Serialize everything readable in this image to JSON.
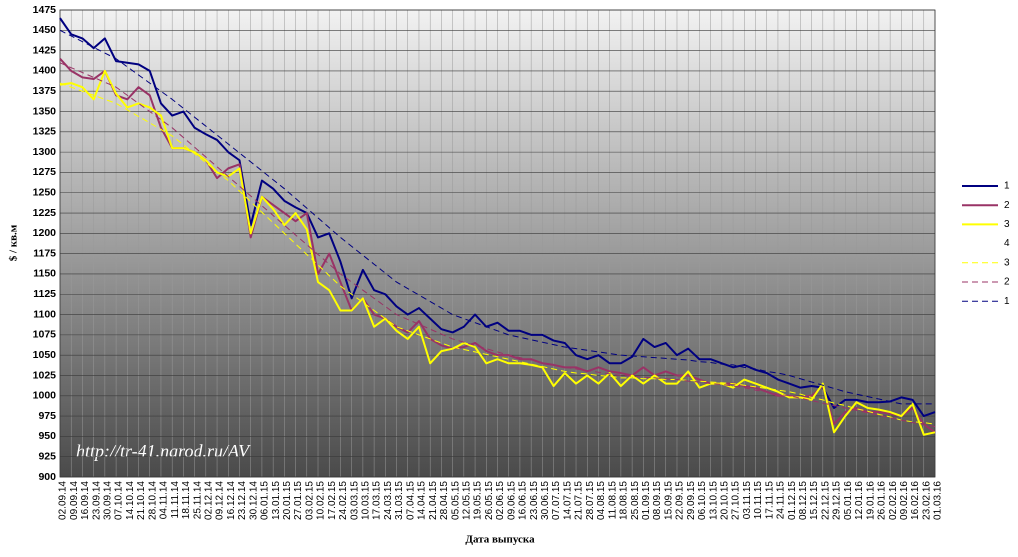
{
  "chart_data": {
    "type": "line",
    "x_label": "Дата выпуска",
    "y_label": "$ / кв.м",
    "annotation": "http://tr-41.narod.ru/AV",
    "categories": [
      "02.09.14",
      "09.09.14",
      "16.09.14",
      "23.09.14",
      "30.09.14",
      "07.10.14",
      "14.10.14",
      "21.10.14",
      "28.10.14",
      "04.11.14",
      "11.11.14",
      "18.11.14",
      "25.11.14",
      "02.12.14",
      "09.12.14",
      "16.12.14",
      "23.12.14",
      "30.12.14",
      "06.01.15",
      "13.01.15",
      "20.01.15",
      "27.01.15",
      "03.02.15",
      "10.02.15",
      "17.02.15",
      "24.02.15",
      "03.03.15",
      "10.03.15",
      "17.03.15",
      "24.03.15",
      "31.03.15",
      "07.04.15",
      "14.04.15",
      "21.04.15",
      "28.04.15",
      "05.05.15",
      "12.05.15",
      "19.05.15",
      "26.05.15",
      "02.06.15",
      "09.06.15",
      "16.06.15",
      "23.06.15",
      "30.06.15",
      "07.07.15",
      "14.07.15",
      "21.07.15",
      "28.07.15",
      "04.08.15",
      "11.08.15",
      "18.08.15",
      "25.08.15",
      "01.09.15",
      "08.09.15",
      "15.09.15",
      "22.09.15",
      "29.09.15",
      "06.10.15",
      "13.10.15",
      "20.10.15",
      "27.10.15",
      "03.11.15",
      "10.11.15",
      "17.11.15",
      "24.11.15",
      "01.12.15",
      "08.12.15",
      "15.12.15",
      "22.12.15",
      "29.12.15",
      "05.01.16",
      "12.01.16",
      "19.01.16",
      "26.01.16",
      "02.02.16",
      "09.02.16",
      "16.02.16",
      "23.02.16",
      "01.03.16"
    ],
    "ylim": [
      900,
      1475
    ],
    "yticks": [
      900,
      925,
      950,
      975,
      1000,
      1025,
      1050,
      1075,
      1100,
      1125,
      1150,
      1175,
      1200,
      1225,
      1250,
      1275,
      1300,
      1325,
      1350,
      1375,
      1400,
      1425,
      1450,
      1475
    ],
    "grid": true,
    "legend": "right",
    "series": [
      {
        "name": "1",
        "color": "#000080",
        "dashed": false,
        "values": [
          1465,
          1445,
          1440,
          1428,
          1440,
          1412,
          1410,
          1408,
          1400,
          1360,
          1345,
          1350,
          1330,
          1322,
          1315,
          1300,
          1290,
          1210,
          1265,
          1255,
          1240,
          1232,
          1225,
          1195,
          1200,
          1165,
          1120,
          1155,
          1130,
          1125,
          1110,
          1100,
          1108,
          1095,
          1082,
          1078,
          1085,
          1100,
          1085,
          1090,
          1080,
          1080,
          1075,
          1075,
          1068,
          1065,
          1050,
          1045,
          1050,
          1040,
          1040,
          1048,
          1070,
          1060,
          1065,
          1050,
          1058,
          1045,
          1045,
          1040,
          1035,
          1038,
          1032,
          1028,
          1020,
          1015,
          1010,
          1012,
          1010,
          985,
          995,
          995,
          992,
          992,
          993,
          998,
          995,
          975,
          980
        ]
      },
      {
        "name": "2",
        "color": "#993366",
        "dashed": false,
        "values": [
          1415,
          1400,
          1392,
          1390,
          1400,
          1370,
          1365,
          1380,
          1370,
          1330,
          1305,
          1305,
          1300,
          1290,
          1268,
          1280,
          1285,
          1195,
          1245,
          1235,
          1225,
          1215,
          1225,
          1150,
          1175,
          1140,
          1105,
          1120,
          1100,
          1095,
          1085,
          1078,
          1092,
          1070,
          1062,
          1058,
          1060,
          1065,
          1055,
          1050,
          1050,
          1045,
          1045,
          1040,
          1038,
          1035,
          1035,
          1030,
          1035,
          1030,
          1028,
          1025,
          1035,
          1025,
          1030,
          1025,
          1025,
          1020,
          1015,
          1015,
          1015,
          1012,
          1010,
          1005,
          1000,
          1000,
          998,
          1000,
          1012,
          965,
          980,
          985,
          980,
          980,
          978,
          975,
          985,
          965,
          955
        ]
      },
      {
        "name": "3",
        "color": "#ffff00",
        "dashed": false,
        "values": [
          1383,
          1385,
          1380,
          1365,
          1400,
          1372,
          1355,
          1360,
          1355,
          1345,
          1305,
          1305,
          1300,
          1290,
          1275,
          1270,
          1280,
          1200,
          1245,
          1230,
          1210,
          1225,
          1205,
          1140,
          1130,
          1105,
          1105,
          1120,
          1085,
          1095,
          1080,
          1070,
          1085,
          1040,
          1055,
          1058,
          1065,
          1060,
          1040,
          1045,
          1040,
          1040,
          1038,
          1035,
          1012,
          1028,
          1015,
          1025,
          1015,
          1028,
          1012,
          1025,
          1015,
          1025,
          1015,
          1015,
          1030,
          1010,
          1015,
          1015,
          1010,
          1020,
          1015,
          1010,
          1005,
          998,
          998,
          995,
          1015,
          955,
          975,
          992,
          985,
          983,
          980,
          975,
          990,
          952,
          955
        ]
      },
      {
        "name": "4",
        "color": "#ffffff",
        "dashed": false,
        "values": [
          null,
          null,
          null,
          null,
          null,
          null,
          null,
          null,
          null,
          null,
          null,
          null,
          null,
          null,
          null,
          null,
          null,
          null,
          null,
          null,
          null,
          null,
          null,
          null,
          null,
          null,
          null,
          null,
          null,
          null,
          null,
          null,
          null,
          null,
          null,
          null,
          null,
          null,
          null,
          null,
          null,
          null,
          null,
          null,
          null,
          null,
          null,
          null,
          null,
          null,
          null,
          null,
          null,
          null,
          null,
          null,
          null,
          null,
          null,
          null,
          null,
          null,
          null,
          null,
          null,
          null,
          null,
          null,
          null,
          null,
          null,
          null,
          null,
          null,
          null,
          null,
          null,
          null,
          null
        ]
      },
      {
        "name": "3",
        "color": "#ffff00",
        "dashed": true,
        "values": [
          1385,
          1380,
          1375,
          1370,
          1365,
          1360,
          1352,
          1344,
          1336,
          1328,
          1320,
          1309,
          1298,
          1287,
          1276,
          1265,
          1252,
          1239,
          1226,
          1213,
          1200,
          1187,
          1174,
          1161,
          1148,
          1135,
          1125,
          1115,
          1105,
          1095,
          1085,
          1080,
          1075,
          1070,
          1065,
          1060,
          1057,
          1054,
          1051,
          1048,
          1045,
          1042,
          1039,
          1036,
          1033,
          1030,
          1028,
          1027,
          1025,
          1024,
          1022,
          1022,
          1021,
          1021,
          1020,
          1020,
          1019,
          1018,
          1017,
          1016,
          1015,
          1013,
          1011,
          1009,
          1007,
          1005,
          1002,
          998,
          995,
          991,
          988,
          984,
          981,
          977,
          974,
          970,
          968,
          967,
          965
        ]
      },
      {
        "name": "2",
        "color": "#993366",
        "dashed": true,
        "values": [
          1410,
          1404,
          1398,
          1392,
          1386,
          1380,
          1370,
          1360,
          1350,
          1340,
          1330,
          1318,
          1306,
          1294,
          1282,
          1270,
          1258,
          1246,
          1234,
          1222,
          1210,
          1198,
          1186,
          1174,
          1162,
          1150,
          1140,
          1130,
          1120,
          1110,
          1100,
          1094,
          1088,
          1082,
          1076,
          1070,
          1066,
          1062,
          1058,
          1054,
          1050,
          1047,
          1044,
          1041,
          1038,
          1035,
          1033,
          1031,
          1029,
          1027,
          1025,
          1024,
          1023,
          1022,
          1021,
          1020,
          1018,
          1017,
          1015,
          1014,
          1012,
          1010,
          1007,
          1005,
          1002,
          1000,
          997,
          994,
          991,
          988,
          985,
          982,
          979,
          976,
          973,
          970,
          967,
          965,
          962
        ]
      },
      {
        "name": "1",
        "color": "#000080",
        "dashed": true,
        "values": [
          1450,
          1443,
          1436,
          1429,
          1422,
          1415,
          1405,
          1395,
          1385,
          1375,
          1365,
          1354,
          1343,
          1332,
          1321,
          1310,
          1299,
          1288,
          1277,
          1266,
          1255,
          1243,
          1231,
          1219,
          1207,
          1195,
          1184,
          1173,
          1162,
          1151,
          1140,
          1132,
          1124,
          1116,
          1108,
          1100,
          1095,
          1090,
          1085,
          1080,
          1075,
          1072,
          1069,
          1066,
          1063,
          1060,
          1058,
          1056,
          1054,
          1052,
          1050,
          1049,
          1048,
          1047,
          1046,
          1045,
          1044,
          1042,
          1041,
          1039,
          1038,
          1035,
          1033,
          1030,
          1028,
          1025,
          1021,
          1017,
          1013,
          1009,
          1005,
          1002,
          999,
          996,
          993,
          990,
          990,
          990,
          990
        ]
      }
    ]
  }
}
